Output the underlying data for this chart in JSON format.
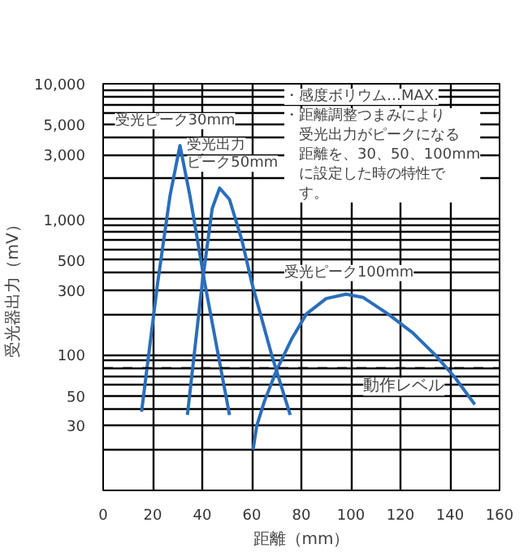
{
  "chart_data": {
    "type": "line",
    "xlabel": "距離（mm）",
    "ylabel": "受光器出力（mV）",
    "log": "y",
    "xlim": [
      0,
      160
    ],
    "xticks": [
      0,
      20,
      40,
      60,
      80,
      100,
      120,
      140,
      160
    ],
    "ylim": [
      10,
      10000
    ],
    "yticks": [
      {
        "value": 20,
        "label": null
      },
      30,
      {
        "value": 40,
        "label": null
      },
      50,
      {
        "value": 60,
        "label": null
      },
      {
        "value": 70,
        "label": null
      },
      {
        "value": 80,
        "label": null
      },
      {
        "value": 90,
        "label": null
      },
      100,
      {
        "value": 200,
        "label": null
      },
      300,
      {
        "value": 400,
        "label": null
      },
      500,
      {
        "value": 600,
        "label": null
      },
      {
        "value": 700,
        "label": null
      },
      {
        "value": 800,
        "label": null
      },
      {
        "value": 900,
        "label": null
      },
      {
        "value": 1000,
        "label": "1,000"
      },
      {
        "value": 2000,
        "label": null
      },
      {
        "value": 3000,
        "label": "3,000"
      },
      {
        "value": 4000,
        "label": null
      },
      {
        "value": 5000,
        "label": "5,000"
      },
      {
        "value": 6000,
        "label": null
      },
      {
        "value": 7000,
        "label": null
      },
      {
        "value": 8000,
        "label": null
      },
      {
        "value": 9000,
        "label": null
      },
      {
        "value": 10000,
        "label": "10,000"
      }
    ],
    "grid": true,
    "line_style": "solid",
    "marker": "none",
    "series": [
      {
        "color": "#2a6ebb",
        "x": [
          15.5,
          22,
          27,
          31,
          35,
          41,
          51
        ],
        "values": [
          38,
          340,
          1500,
          3500,
          1500,
          340,
          36
        ]
      },
      {
        "color": "#2a6ebb",
        "x": [
          34,
          40,
          44,
          47,
          51,
          56,
          60,
          68,
          75.5
        ],
        "values": [
          36,
          340,
          1200,
          1700,
          1400,
          700,
          340,
          100,
          36
        ]
      },
      {
        "color": "#2a6ebb",
        "x": [
          60.5,
          62,
          65,
          70,
          76,
          82,
          90,
          98,
          105,
          115,
          125,
          134,
          142,
          150
        ],
        "values": [
          20,
          30,
          45,
          77,
          130,
          200,
          260,
          280,
          265,
          200,
          145,
          100,
          68,
          43
        ]
      }
    ],
    "ref_lines": [
      {
        "axis": "y",
        "value": 80,
        "label": "動作レベル",
        "color": "#000000",
        "line_style": "dashed"
      }
    ],
    "annotations": [
      {
        "text": "受光ピーク30mm",
        "x": 31,
        "y": 3500
      },
      {
        "text": "受光出力",
        "x": 47,
        "y": 1700
      },
      {
        "text": "ピーク50mm",
        "x": 47,
        "y": 1700
      },
      {
        "text": "受光ピーク100mm",
        "x": 98,
        "y": 280
      },
      "・感度ボリウム…MAX.",
      "・距離調整つまみにより受光出力がピークになる距離を、30、50、100mmに設定した時の特性です。"
    ]
  }
}
